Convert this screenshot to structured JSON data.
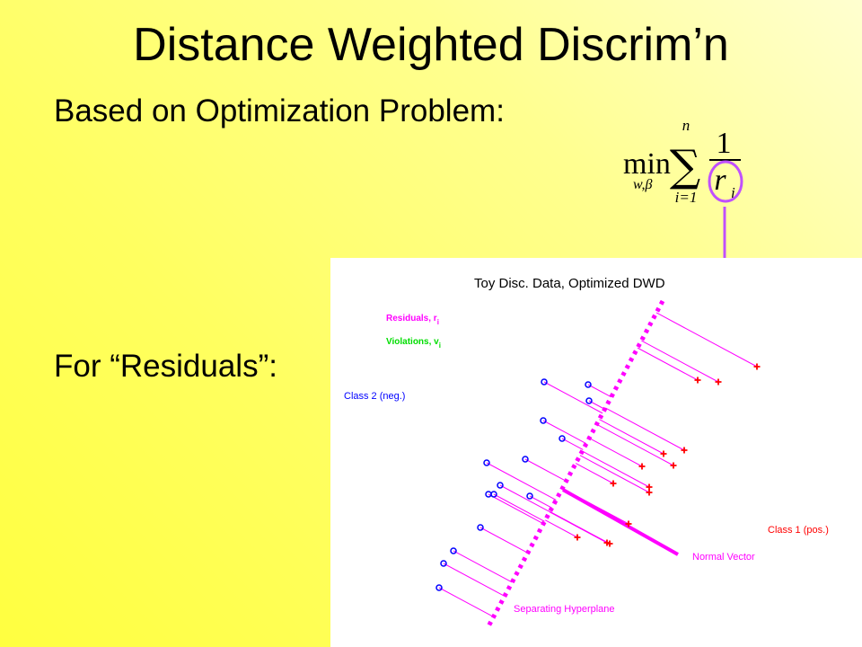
{
  "slide": {
    "title": "Distance Weighted Discrim’n",
    "bullet_1": "Based on Optimization Problem:",
    "bullet_2": "For “Residuals”:"
  },
  "formula": {
    "min": "min",
    "min_subscript": "w,β",
    "sum_upper": "n",
    "sum_lower": "i=1",
    "numerator": "1",
    "denominator": "r",
    "denominator_subscript": "i"
  },
  "colors": {
    "residual": "#ff00ff",
    "violation": "#00dd00",
    "class1": "#ff0000",
    "class2": "#0000ff",
    "highlight": "#c050ff"
  },
  "chart_data": {
    "type": "scatter",
    "title": "Toy Disc. Data, Optimized DWD",
    "legend": {
      "residuals": "Residuals, r",
      "residuals_subscript": "i",
      "violations": "Violations, v",
      "violations_subscript": "i",
      "placement": "top-left"
    },
    "labels": {
      "class2": "Class 2 (neg.)",
      "class1": "Class 1 (pos.)",
      "normal_vector": "Normal Vector",
      "hyperplane": "Separating Hyperplane"
    },
    "axes": "none",
    "hyperplane": {
      "p1": [
        370,
        48
      ],
      "p2": [
        176,
        410
      ]
    },
    "normal_vector": {
      "from": [
        259,
        258
      ],
      "to": [
        387,
        330
      ]
    },
    "class2_points": [
      [
        287,
        141
      ],
      [
        238,
        138
      ],
      [
        288,
        159
      ],
      [
        237,
        181
      ],
      [
        258,
        201
      ],
      [
        217,
        224
      ],
      [
        174,
        228
      ],
      [
        189,
        253
      ],
      [
        176,
        263
      ],
      [
        222,
        265
      ],
      [
        182,
        263
      ],
      [
        167,
        300
      ],
      [
        137,
        326
      ],
      [
        126,
        340
      ],
      [
        121,
        367
      ]
    ],
    "class1_points": [
      [
        475,
        121
      ],
      [
        409,
        136
      ],
      [
        432,
        138
      ],
      [
        394,
        214
      ],
      [
        371,
        218
      ],
      [
        382,
        231
      ],
      [
        347,
        232
      ],
      [
        355,
        255
      ],
      [
        355,
        261
      ],
      [
        315,
        251
      ],
      [
        332,
        296
      ],
      [
        308,
        317
      ],
      [
        275,
        311
      ],
      [
        311,
        318
      ]
    ]
  }
}
